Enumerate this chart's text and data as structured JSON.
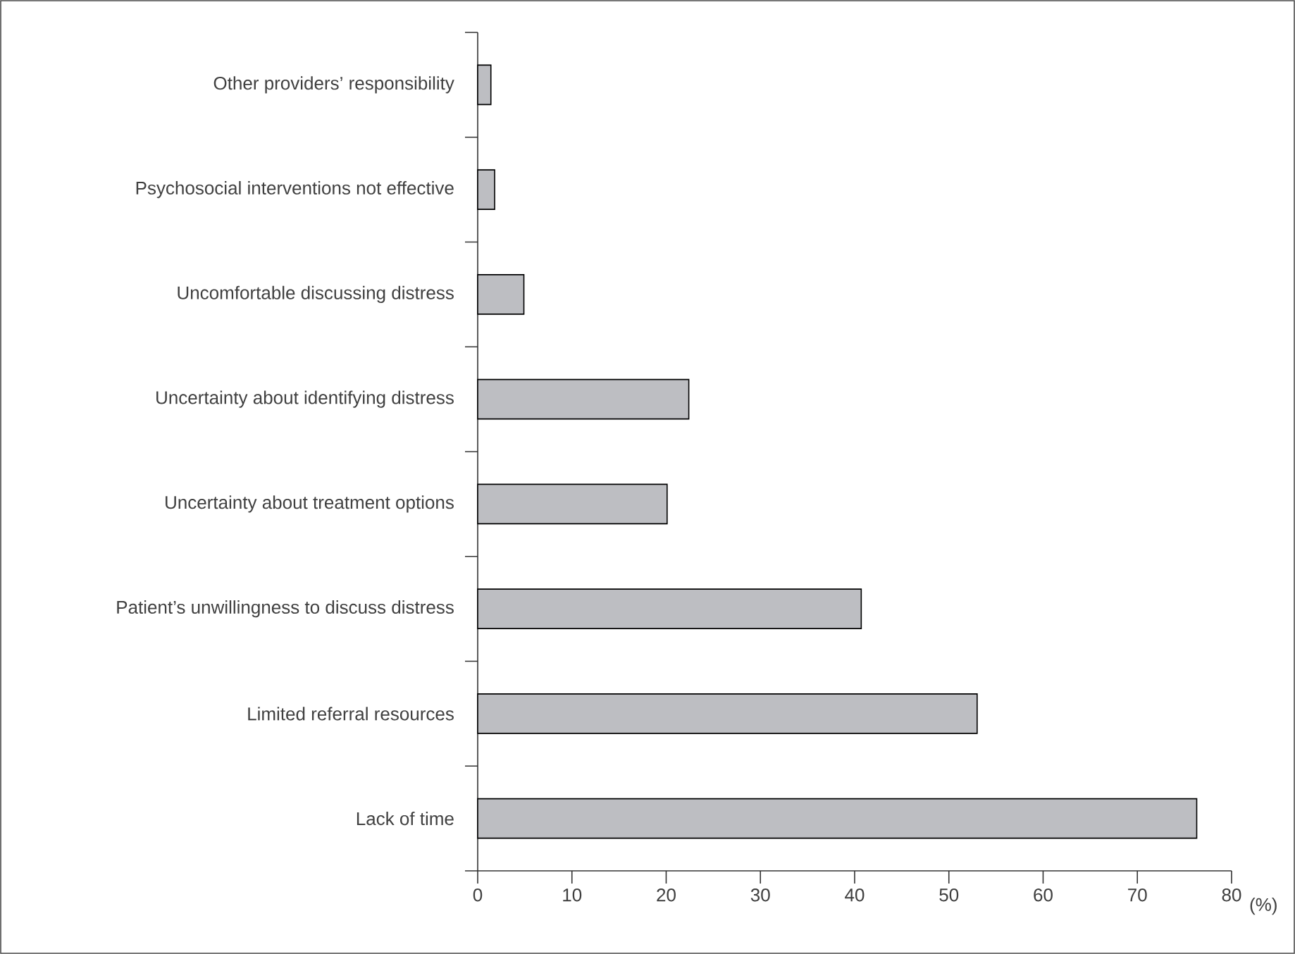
{
  "chart_data": {
    "type": "bar",
    "orientation": "horizontal",
    "xlabel": "(%)",
    "categories": [
      "Other providers’ responsibility",
      "Psychosocial interventions not effective",
      "Uncomfortable discussing distress",
      "Uncertainty about identifying distress",
      "Uncertainty about treatment options",
      "Patient’s unwillingness to discuss distress",
      "Limited referral resources",
      "Lack of time"
    ],
    "values": [
      1.4,
      1.8,
      4.9,
      22.4,
      20.1,
      40.7,
      53,
      76.3
    ],
    "color": "#bdbec2",
    "xlim": [
      0,
      80
    ],
    "xticks": [
      0,
      10,
      20,
      30,
      40,
      50,
      60,
      70,
      80
    ]
  }
}
